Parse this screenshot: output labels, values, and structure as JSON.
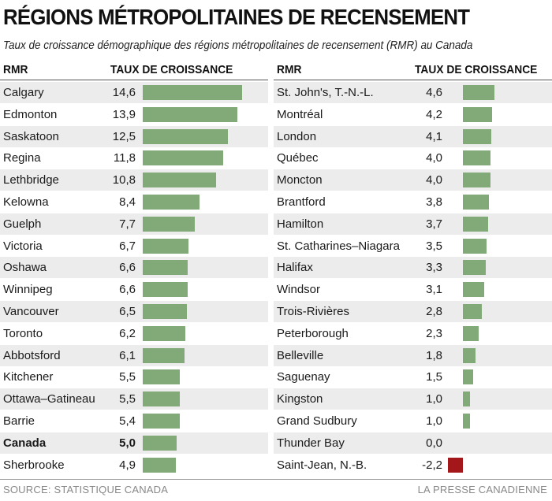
{
  "title": "RÉGIONS MÉTROPOLITAINES DE RECENSEMENT",
  "subtitle": "Taux de croissance démographique des régions métropolitaines de recensement (RMR) au Canada",
  "headers": {
    "rmr": "RMR",
    "rate": "TAUX DE CROISSANCE"
  },
  "footer": {
    "source": "SOURCE: STATISTIQUE CANADA",
    "credit": "LA PRESSE CANADIENNE"
  },
  "colors": {
    "positive_bar": "#82aa78",
    "negative_bar": "#a3171b",
    "row_shade": "#ececec"
  },
  "chart_data": {
    "type": "bar",
    "orientation": "horizontal",
    "title": "RÉGIONS MÉTROPOLITAINES DE RECENSEMENT",
    "subtitle": "Taux de croissance démographique des régions métropolitaines de recensement (RMR) au Canada",
    "columns": [
      {
        "rows": [
          {
            "name": "Calgary",
            "value": 14.6,
            "label": "14,6"
          },
          {
            "name": "Edmonton",
            "value": 13.9,
            "label": "13,9"
          },
          {
            "name": "Saskatoon",
            "value": 12.5,
            "label": "12,5"
          },
          {
            "name": "Regina",
            "value": 11.8,
            "label": "11,8"
          },
          {
            "name": "Lethbridge",
            "value": 10.8,
            "label": "10,8"
          },
          {
            "name": "Kelowna",
            "value": 8.4,
            "label": "8,4"
          },
          {
            "name": "Guelph",
            "value": 7.7,
            "label": "7,7"
          },
          {
            "name": "Victoria",
            "value": 6.7,
            "label": "6,7"
          },
          {
            "name": "Oshawa",
            "value": 6.6,
            "label": "6,6"
          },
          {
            "name": "Winnipeg",
            "value": 6.6,
            "label": "6,6"
          },
          {
            "name": "Vancouver",
            "value": 6.5,
            "label": "6,5"
          },
          {
            "name": "Toronto",
            "value": 6.2,
            "label": "6,2"
          },
          {
            "name": "Abbotsford",
            "value": 6.1,
            "label": "6,1"
          },
          {
            "name": "Kitchener",
            "value": 5.5,
            "label": "5,5"
          },
          {
            "name": "Ottawa–Gatineau",
            "value": 5.5,
            "label": "5,5"
          },
          {
            "name": "Barrie",
            "value": 5.4,
            "label": "5,4"
          },
          {
            "name": "Canada",
            "value": 5.0,
            "label": "5,0",
            "bold": true
          },
          {
            "name": "Sherbrooke",
            "value": 4.9,
            "label": "4,9"
          }
        ]
      },
      {
        "rows": [
          {
            "name": "St. John's, T.-N.-L.",
            "value": 4.6,
            "label": "4,6"
          },
          {
            "name": "Montréal",
            "value": 4.2,
            "label": "4,2"
          },
          {
            "name": "London",
            "value": 4.1,
            "label": "4,1"
          },
          {
            "name": "Québec",
            "value": 4.0,
            "label": "4,0"
          },
          {
            "name": "Moncton",
            "value": 4.0,
            "label": "4,0"
          },
          {
            "name": "Brantford",
            "value": 3.8,
            "label": "3,8"
          },
          {
            "name": "Hamilton",
            "value": 3.7,
            "label": "3,7"
          },
          {
            "name": "St. Catharines–Niagara",
            "value": 3.5,
            "label": "3,5"
          },
          {
            "name": "Halifax",
            "value": 3.3,
            "label": "3,3"
          },
          {
            "name": "Windsor",
            "value": 3.1,
            "label": "3,1"
          },
          {
            "name": "Trois-Rivières",
            "value": 2.8,
            "label": "2,8"
          },
          {
            "name": "Peterborough",
            "value": 2.3,
            "label": "2,3"
          },
          {
            "name": "Belleville",
            "value": 1.8,
            "label": "1,8"
          },
          {
            "name": "Saguenay",
            "value": 1.5,
            "label": "1,5"
          },
          {
            "name": "Kingston",
            "value": 1.0,
            "label": "1,0"
          },
          {
            "name": "Grand Sudbury",
            "value": 1.0,
            "label": "1,0"
          },
          {
            "name": "Thunder Bay",
            "value": 0.0,
            "label": "0,0"
          },
          {
            "name": "Saint-Jean, N.-B.",
            "value": -2.2,
            "label": "-2,2"
          }
        ]
      }
    ],
    "grid": false,
    "legend": "none"
  }
}
